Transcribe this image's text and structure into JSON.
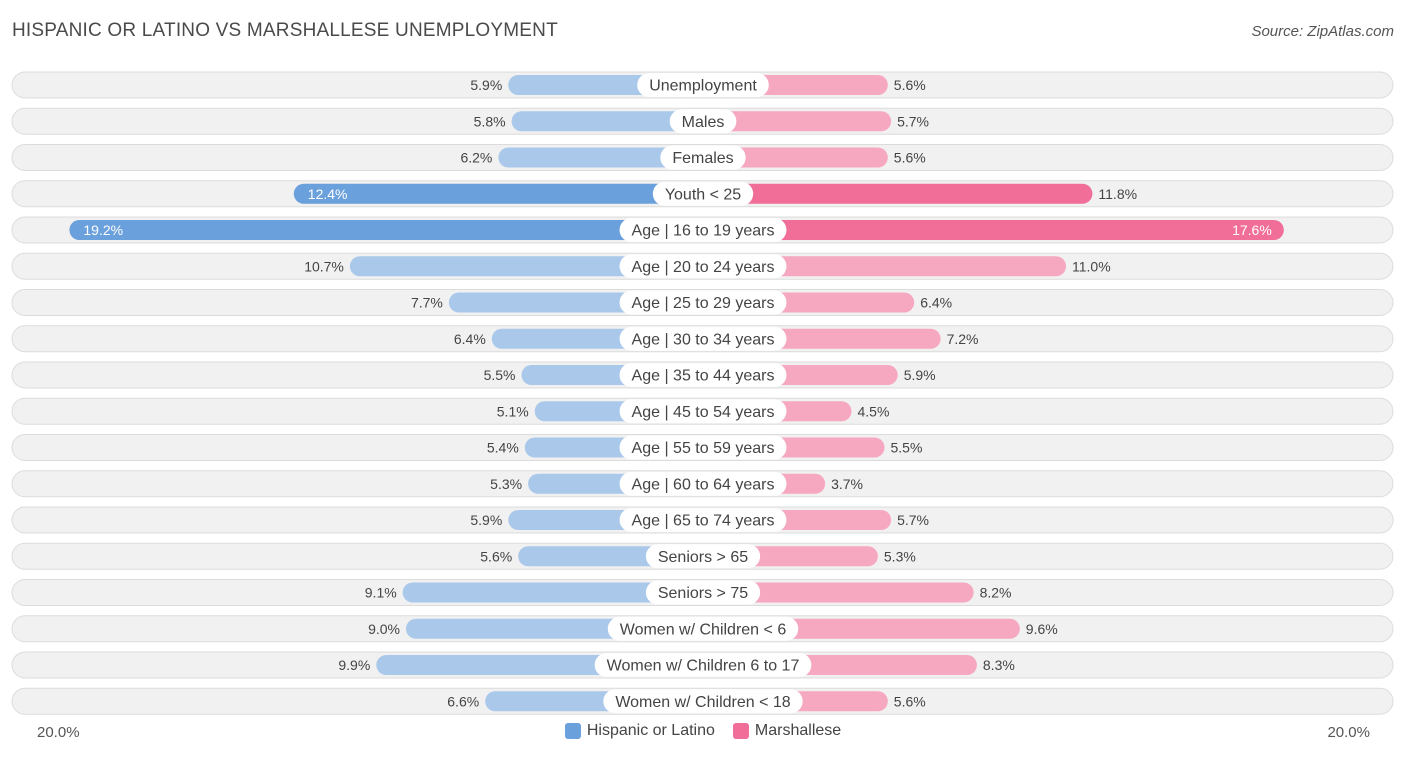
{
  "header": {
    "title": "HISPANIC OR LATINO VS MARSHALLESE UNEMPLOYMENT",
    "source": "Source: ZipAtlas.com"
  },
  "footer": {
    "left_axis": "20.0%",
    "right_axis": "20.0%"
  },
  "legend": {
    "left_label": "Hispanic or Latino",
    "right_label": "Marshallese"
  },
  "colors": {
    "left_strong": "#6aa0dc",
    "left_light": "#a9c8ea",
    "right_strong": "#f06e98",
    "right_light": "#f6a8c0",
    "row_bg": "#f1f1f1",
    "row_border": "#dcdcdc"
  },
  "chart_data": {
    "type": "bar",
    "orientation": "horizontal-diverging",
    "title": "HISPANIC OR LATINO VS MARSHALLESE UNEMPLOYMENT",
    "axis_max": 20.0,
    "categories": [
      "Unemployment",
      "Males",
      "Females",
      "Youth < 25",
      "Age | 16 to 19 years",
      "Age | 20 to 24 years",
      "Age | 25 to 29 years",
      "Age | 30 to 34 years",
      "Age | 35 to 44 years",
      "Age | 45 to 54 years",
      "Age | 55 to 59 years",
      "Age | 60 to 64 years",
      "Age | 65 to 74 years",
      "Seniors > 65",
      "Seniors > 75",
      "Women w/ Children < 6",
      "Women w/ Children 6 to 17",
      "Women w/ Children < 18"
    ],
    "series": [
      {
        "name": "Hispanic or Latino",
        "values": [
          5.9,
          5.8,
          6.2,
          12.4,
          19.2,
          10.7,
          7.7,
          6.4,
          5.5,
          5.1,
          5.4,
          5.3,
          5.9,
          5.6,
          9.1,
          9.0,
          9.9,
          6.6
        ],
        "labels": [
          "5.9%",
          "5.8%",
          "6.2%",
          "12.4%",
          "19.2%",
          "10.7%",
          "7.7%",
          "6.4%",
          "5.5%",
          "5.1%",
          "5.4%",
          "5.3%",
          "5.9%",
          "5.6%",
          "9.1%",
          "9.0%",
          "9.9%",
          "6.6%"
        ]
      },
      {
        "name": "Marshallese",
        "values": [
          5.6,
          5.7,
          5.6,
          11.8,
          17.6,
          11.0,
          6.4,
          7.2,
          5.9,
          4.5,
          5.5,
          3.7,
          5.7,
          5.3,
          8.2,
          9.6,
          8.3,
          5.6
        ],
        "labels": [
          "5.6%",
          "5.7%",
          "5.6%",
          "11.8%",
          "17.6%",
          "11.0%",
          "6.4%",
          "7.2%",
          "5.9%",
          "4.5%",
          "5.5%",
          "3.7%",
          "5.7%",
          "5.3%",
          "8.2%",
          "9.6%",
          "8.3%",
          "5.6%"
        ]
      }
    ]
  }
}
